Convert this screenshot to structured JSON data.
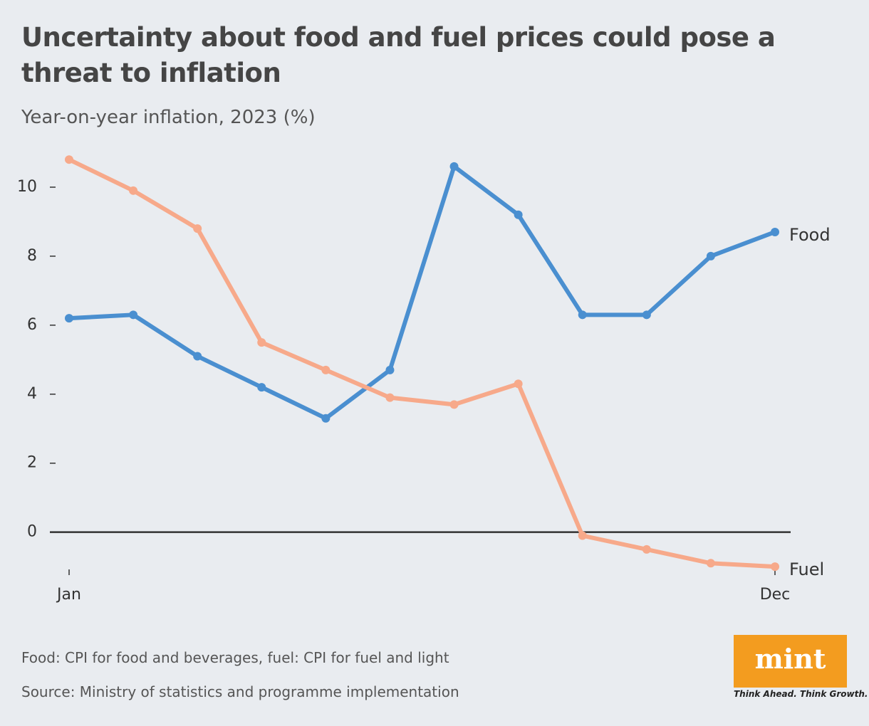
{
  "chart_data": {
    "type": "line",
    "title": "Uncertainty about food and fuel prices could pose a threat to inflation",
    "subtitle": "Year-on-year inflation, 2023 (%)",
    "categories": [
      "Jan",
      null,
      null,
      null,
      null,
      null,
      null,
      null,
      null,
      null,
      null,
      "Dec"
    ],
    "series": [
      {
        "name": "Food",
        "color": "#4a8fd0",
        "values": [
          6.2,
          6.3,
          5.1,
          4.2,
          3.3,
          4.7,
          10.6,
          9.2,
          6.3,
          6.3,
          8.0,
          8.7
        ]
      },
      {
        "name": "Fuel",
        "color": "#f7a98a",
        "values": [
          10.8,
          9.9,
          8.8,
          5.5,
          4.7,
          3.9,
          3.7,
          4.3,
          -0.1,
          -0.5,
          -0.9,
          -1.0
        ]
      }
    ],
    "ylim": [
      -1.1,
      11
    ],
    "yticks": [
      0,
      2,
      4,
      6,
      8,
      10
    ],
    "note": "Food: CPI for food and beverages, fuel: CPI for fuel and light",
    "source": "Source: Ministry of statistics and programme implementation"
  },
  "branding": {
    "name": "mint",
    "tagline": "Think Ahead. Think Growth."
  }
}
